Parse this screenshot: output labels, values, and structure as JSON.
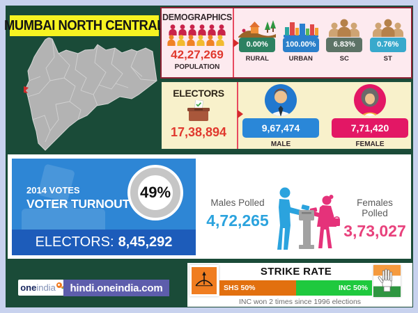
{
  "title": "MUMBAI NORTH CENTRAL",
  "demographics": {
    "heading": "DEMOGRAPHICS",
    "population_value": "42,27,269",
    "population_label": "POPULATION",
    "crowd_icon": "population-crowd-icon",
    "stats": [
      {
        "label": "RURAL",
        "value": "0.00%",
        "color": "#2d8161",
        "icon": "rural-landscape-icon"
      },
      {
        "label": "URBAN",
        "value": "100.00%",
        "color": "#2b80ca",
        "icon": "city-skyline-icon"
      },
      {
        "label": "SC",
        "value": "6.83%",
        "color": "#5d7366",
        "icon": "people-group-icon"
      },
      {
        "label": "ST",
        "value": "0.76%",
        "color": "#38a9cc",
        "icon": "people-group-icon"
      }
    ]
  },
  "electors": {
    "heading": "ELECTORS",
    "total_value": "17,38,894",
    "ballot_icon": "ballot-box-icon",
    "male": {
      "label": "MALE",
      "value": "9,67,474",
      "color": "#2a87d8",
      "icon": "male-avatar-icon"
    },
    "female": {
      "label": "FEMALE",
      "value": "7,71,420",
      "color": "#e31765",
      "icon": "female-avatar-icon"
    }
  },
  "turnout": {
    "line1": "2014 VOTES",
    "line2": "VOTER TURNOUT",
    "percent": "49%",
    "electors_label": "ELECTORS:",
    "electors_value": "8,45,292",
    "males_polled_label": "Males Polled",
    "males_polled_value": "4,72,265",
    "females_polled_label": "Females Polled",
    "females_polled_value": "3,73,027",
    "illustration_icon": "voters-at-ballot-box-icon"
  },
  "strike_rate": {
    "heading": "STRIKE RATE",
    "left": {
      "label": "SHS 50%",
      "color": "#e2700f",
      "pct": 50,
      "icon": "bow-and-arrow-icon"
    },
    "right": {
      "label": "INC 50%",
      "color": "#1fc93e",
      "pct": 50,
      "icon": "congress-hand-flag-icon"
    },
    "note": "INC won 2 times since 1996 elections"
  },
  "footer": {
    "logo_one": "one",
    "logo_india": "india",
    "site": "hindi.oneindia.com"
  },
  "map": {
    "name": "maharashtra-state-map",
    "marker": "constituency-marker"
  },
  "colors": {
    "background_green": "#1a4b38",
    "frame": "#c8d2ee",
    "title_yellow": "#f6f321",
    "accent_red": "#e0392e",
    "turnout_blue": "#2e86d5",
    "turnout_dark_blue": "#1d5cba",
    "males_blue": "#2ba3de",
    "females_pink": "#e8417c",
    "footer_purple": "#5d5dac"
  },
  "chart_data": [
    {
      "type": "table",
      "title": "Demographics",
      "categories": [
        "Population",
        "Rural",
        "Urban",
        "SC",
        "ST"
      ],
      "values": [
        "42,27,269",
        "0.00%",
        "100.00%",
        "6.83%",
        "0.76%"
      ]
    },
    {
      "type": "table",
      "title": "Electors",
      "categories": [
        "Total",
        "Male",
        "Female"
      ],
      "values": [
        "17,38,894",
        "9,67,474",
        "7,71,420"
      ]
    },
    {
      "type": "table",
      "title": "2014 Votes Voter Turnout",
      "categories": [
        "Turnout",
        "Electors",
        "Males Polled",
        "Females Polled"
      ],
      "values": [
        "49%",
        "8,45,292",
        "4,72,265",
        "3,73,027"
      ]
    },
    {
      "type": "bar",
      "title": "Strike Rate",
      "categories": [
        "SHS",
        "INC"
      ],
      "values": [
        50,
        50
      ],
      "note": "INC won 2 times since 1996 elections"
    }
  ]
}
